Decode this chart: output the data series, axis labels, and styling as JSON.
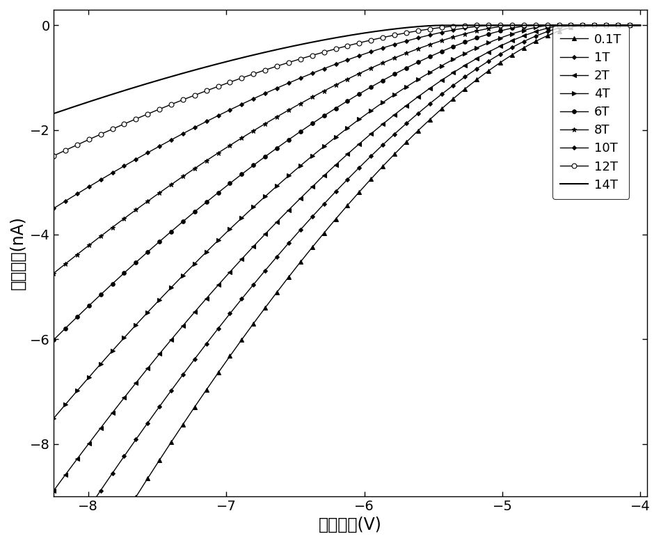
{
  "xlabel": "源漏电压(V)",
  "ylabel": "源漏电流(nA)",
  "xlim": [
    -8.25,
    -3.95
  ],
  "ylim": [
    -9.0,
    0.3
  ],
  "xticks": [
    -8,
    -7,
    -6,
    -5,
    -4
  ],
  "yticks": [
    0,
    -2,
    -4,
    -6,
    -8
  ],
  "curve_params": [
    {
      "label": "0.1T",
      "marker": "^",
      "markersize": 4,
      "markevery": 12,
      "mfc": "black",
      "Isat": 0.0012,
      "alpha": 1.72,
      "Vref": -4.0
    },
    {
      "label": "1T",
      "marker": "D",
      "markersize": 3,
      "markevery": 12,
      "mfc": "black",
      "Isat": 0.001,
      "alpha": 1.68,
      "Vref": -4.0
    },
    {
      "label": "2T",
      "marker": "<",
      "markersize": 4,
      "markevery": 12,
      "mfc": "black",
      "Isat": 0.0008,
      "alpha": 1.64,
      "Vref": -4.0
    },
    {
      "label": "4T",
      "marker": ">",
      "markersize": 4,
      "markevery": 12,
      "mfc": "black",
      "Isat": 0.0006,
      "alpha": 1.58,
      "Vref": -4.0
    },
    {
      "label": "6T",
      "marker": "o",
      "markersize": 4,
      "markevery": 12,
      "mfc": "black",
      "Isat": 0.00045,
      "alpha": 1.52,
      "Vref": -4.0
    },
    {
      "label": "8T",
      "marker": "*",
      "markersize": 5,
      "markevery": 12,
      "mfc": "black",
      "Isat": 0.00033,
      "alpha": 1.46,
      "Vref": -4.0
    },
    {
      "label": "10T",
      "marker": "D",
      "markersize": 3,
      "markevery": 12,
      "mfc": "black",
      "Isat": 0.00022,
      "alpha": 1.4,
      "Vref": -4.0
    },
    {
      "label": "12T",
      "marker": "o",
      "markersize": 5,
      "markevery": 12,
      "mfc": "white",
      "Isat": 0.00014,
      "alpha": 1.35,
      "Vref": -4.0
    },
    {
      "label": "14T",
      "marker": "none",
      "markersize": 0,
      "markevery": 12,
      "mfc": "black",
      "Isat": 8e-05,
      "alpha": 1.3,
      "Vref": -4.0
    }
  ],
  "line_color": "#000000",
  "linewidth": 1.0,
  "legend_fontsize": 13,
  "label_fontsize": 17,
  "tick_fontsize": 14,
  "figsize": [
    9.5,
    7.8
  ],
  "dpi": 100
}
